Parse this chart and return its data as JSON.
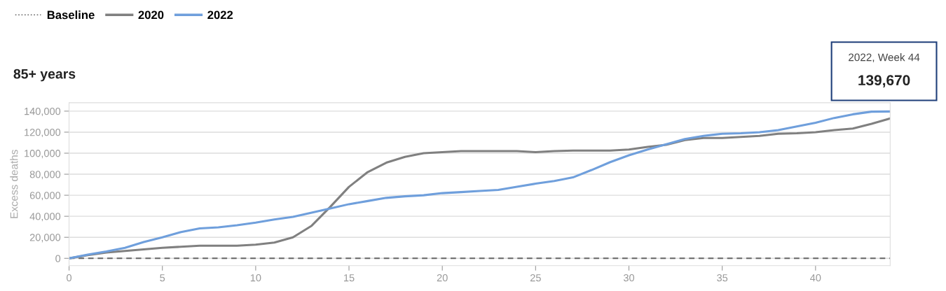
{
  "chart_data": {
    "type": "line",
    "title": "85+ years",
    "ylabel": "Excess deaths",
    "x": [
      0,
      1,
      2,
      3,
      4,
      5,
      6,
      7,
      8,
      9,
      10,
      11,
      12,
      13,
      14,
      15,
      16,
      17,
      18,
      19,
      20,
      21,
      22,
      23,
      24,
      25,
      26,
      27,
      28,
      29,
      30,
      31,
      32,
      33,
      34,
      35,
      36,
      37,
      38,
      39,
      40,
      41,
      42,
      43,
      44
    ],
    "series": [
      {
        "name": "Baseline",
        "color": "#666666",
        "line_style": "dashed",
        "values": [
          0,
          0,
          0,
          0,
          0,
          0,
          0,
          0,
          0,
          0,
          0,
          0,
          0,
          0,
          0,
          0,
          0,
          0,
          0,
          0,
          0,
          0,
          0,
          0,
          0,
          0,
          0,
          0,
          0,
          0,
          0,
          0,
          0,
          0,
          0,
          0,
          0,
          0,
          0,
          0,
          0,
          0,
          0,
          0,
          0
        ]
      },
      {
        "name": "2020",
        "color": "#808080",
        "line_style": "solid",
        "values": [
          0,
          3000,
          5500,
          7000,
          8500,
          10000,
          11000,
          12000,
          12000,
          12000,
          13000,
          15000,
          20000,
          31000,
          49000,
          68000,
          82000,
          91000,
          96500,
          100000,
          101000,
          102000,
          102000,
          102000,
          102000,
          101000,
          102000,
          102500,
          102500,
          102500,
          103500,
          106000,
          108000,
          112500,
          114500,
          114500,
          115500,
          116500,
          118500,
          119000,
          120000,
          122000,
          123500,
          128000,
          133000
        ]
      },
      {
        "name": "2022",
        "color": "#6f9fdc",
        "line_style": "solid",
        "values": [
          0,
          3500,
          6500,
          10000,
          15500,
          20000,
          25000,
          28500,
          29500,
          31500,
          34000,
          37000,
          39500,
          43500,
          47500,
          51500,
          54500,
          57500,
          59000,
          60000,
          62000,
          63000,
          64000,
          65000,
          68000,
          71000,
          73500,
          77000,
          84000,
          91500,
          98000,
          103500,
          108500,
          113500,
          116500,
          118500,
          119000,
          120000,
          122000,
          125500,
          129000,
          133500,
          137000,
          139500,
          139670
        ]
      }
    ],
    "xlim": [
      0,
      44
    ],
    "xticks": [
      0,
      5,
      10,
      15,
      20,
      25,
      30,
      35,
      40
    ],
    "ylim": [
      -7000,
      148000
    ],
    "yticks": [
      {
        "value": 0,
        "label": "0"
      },
      {
        "value": 20000,
        "label": "20,000"
      },
      {
        "value": 40000,
        "label": "40,000"
      },
      {
        "value": 60000,
        "label": "60,000"
      },
      {
        "value": 80000,
        "label": "80,000"
      },
      {
        "value": 100000,
        "label": "100,000"
      },
      {
        "value": 120000,
        "label": "120,000"
      },
      {
        "value": 140000,
        "label": "140,000"
      }
    ],
    "grid": "y",
    "legend": "top left",
    "marker": "none",
    "annotations": [
      "2022, Week 44",
      "139,670"
    ]
  }
}
